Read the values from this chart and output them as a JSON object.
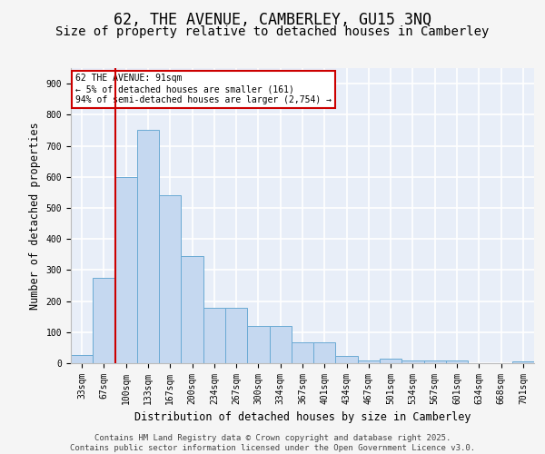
{
  "title": "62, THE AVENUE, CAMBERLEY, GU15 3NQ",
  "subtitle": "Size of property relative to detached houses in Camberley",
  "xlabel": "Distribution of detached houses by size in Camberley",
  "ylabel": "Number of detached properties",
  "categories": [
    "33sqm",
    "67sqm",
    "100sqm",
    "133sqm",
    "167sqm",
    "200sqm",
    "234sqm",
    "267sqm",
    "300sqm",
    "334sqm",
    "367sqm",
    "401sqm",
    "434sqm",
    "467sqm",
    "501sqm",
    "534sqm",
    "567sqm",
    "601sqm",
    "634sqm",
    "668sqm",
    "701sqm"
  ],
  "values": [
    25,
    275,
    600,
    750,
    540,
    345,
    178,
    178,
    120,
    120,
    68,
    68,
    22,
    10,
    15,
    10,
    8,
    8,
    0,
    0,
    5
  ],
  "bar_color": "#c5d8f0",
  "bar_edge_color": "#6aaad4",
  "bg_color": "#e8eef8",
  "grid_color": "#ffffff",
  "vline_color": "#cc0000",
  "vline_pos": 1.5,
  "annotation_text": "62 THE AVENUE: 91sqm\n← 5% of detached houses are smaller (161)\n94% of semi-detached houses are larger (2,754) →",
  "ylim": [
    0,
    950
  ],
  "yticks": [
    0,
    100,
    200,
    300,
    400,
    500,
    600,
    700,
    800,
    900
  ],
  "footer_line1": "Contains HM Land Registry data © Crown copyright and database right 2025.",
  "footer_line2": "Contains public sector information licensed under the Open Government Licence v3.0.",
  "title_fontsize": 12,
  "subtitle_fontsize": 10,
  "label_fontsize": 8.5,
  "tick_fontsize": 7,
  "footer_fontsize": 6.5
}
